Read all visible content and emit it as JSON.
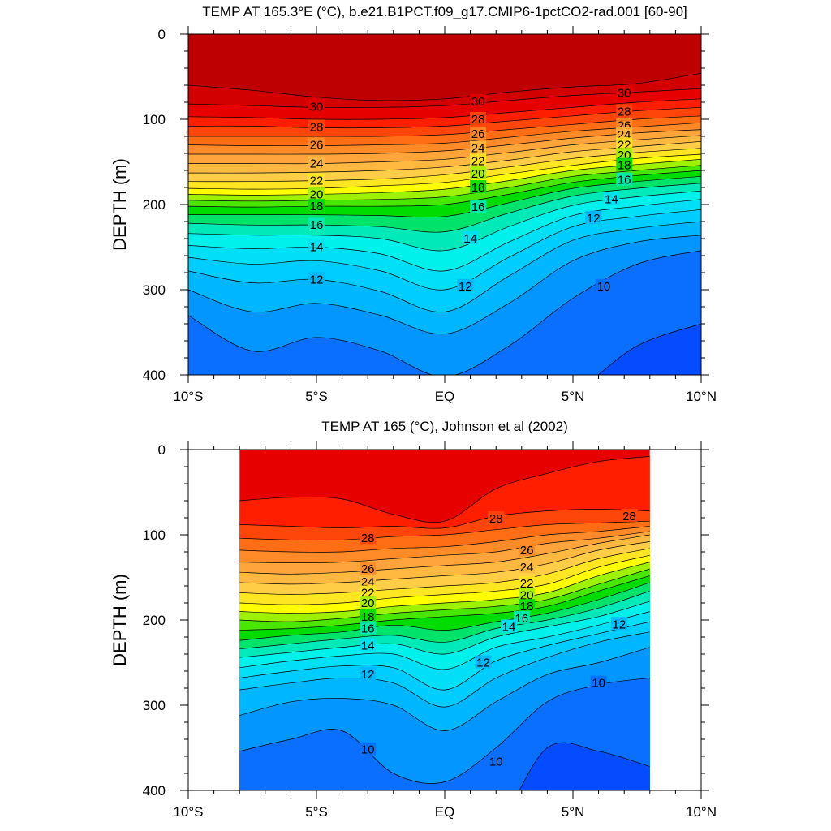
{
  "chart_data": [
    {
      "type": "contour",
      "title": "TEMP AT 165.3°E (°C), b.e21.B1PCT.f09_g17.CMIP6-1pctCO2-rad.001 [60-90]",
      "ylabel": "DEPTH (m)",
      "xlim": [
        -10,
        10
      ],
      "ylim": [
        0,
        400
      ],
      "y_inverted": true,
      "x_ticks": [
        {
          "value": -10,
          "label": "10°S"
        },
        {
          "value": -5,
          "label": "5°S"
        },
        {
          "value": 0,
          "label": "EQ"
        },
        {
          "value": 5,
          "label": "5°N"
        },
        {
          "value": 10,
          "label": "10°N"
        }
      ],
      "y_ticks": [
        0,
        100,
        200,
        300,
        400
      ],
      "data_x_range": [
        -10,
        10
      ],
      "contour_levels": [
        9,
        10,
        11,
        12,
        13,
        14,
        15,
        16,
        17,
        18,
        19,
        20,
        21,
        22,
        23,
        24,
        25,
        26,
        27,
        28,
        29,
        30,
        31
      ],
      "isotherm_depths_x": [
        -10,
        -7.5,
        -5,
        -2.5,
        0,
        2.5,
        5,
        7.5,
        10
      ],
      "isotherms": [
        {
          "t": 31,
          "depths": [
            60,
            66,
            74,
            78,
            76,
            68,
            62,
            58,
            46
          ]
        },
        {
          "t": 30,
          "depths": [
            82,
            84,
            86,
            86,
            84,
            78,
            72,
            68,
            64
          ]
        },
        {
          "t": 29,
          "depths": [
            97,
            98,
            100,
            100,
            98,
            92,
            86,
            80,
            76
          ]
        },
        {
          "t": 28,
          "depths": [
            108,
            108,
            110,
            110,
            108,
            102,
            96,
            90,
            86
          ]
        },
        {
          "t": 27,
          "depths": [
            120,
            120,
            120,
            120,
            118,
            112,
            106,
            100,
            96
          ]
        },
        {
          "t": 26,
          "depths": [
            130,
            131,
            131,
            130,
            128,
            121,
            114,
            109,
            104
          ]
        },
        {
          "t": 25,
          "depths": [
            141,
            141,
            141,
            140,
            137,
            130,
            122,
            116,
            112
          ]
        },
        {
          "t": 24,
          "depths": [
            152,
            152,
            152,
            150,
            147,
            139,
            130,
            124,
            119
          ]
        },
        {
          "t": 23,
          "depths": [
            163,
            163,
            162,
            160,
            156,
            148,
            138,
            132,
            126
          ]
        },
        {
          "t": 22,
          "depths": [
            173,
            173,
            172,
            170,
            165,
            156,
            146,
            139,
            134
          ]
        },
        {
          "t": 21,
          "depths": [
            181,
            182,
            181,
            178,
            174,
            164,
            154,
            146,
            141
          ]
        },
        {
          "t": 20,
          "depths": [
            188,
            189,
            188,
            186,
            182,
            172,
            160,
            153,
            147
          ]
        },
        {
          "t": 19,
          "depths": [
            195,
            196,
            195,
            194,
            191,
            180,
            167,
            160,
            154
          ]
        },
        {
          "t": 18,
          "depths": [
            202,
            203,
            202,
            202,
            200,
            188,
            174,
            166,
            160
          ]
        },
        {
          "t": 17,
          "depths": [
            212,
            212,
            212,
            213,
            214,
            198,
            181,
            173,
            167
          ]
        },
        {
          "t": 16,
          "depths": [
            222,
            224,
            224,
            226,
            232,
            210,
            190,
            181,
            175
          ]
        },
        {
          "t": 15,
          "depths": [
            234,
            236,
            236,
            240,
            254,
            226,
            201,
            191,
            184
          ]
        },
        {
          "t": 14,
          "depths": [
            248,
            252,
            250,
            258,
            278,
            244,
            213,
            202,
            194
          ]
        },
        {
          "t": 13,
          "depths": [
            262,
            270,
            266,
            278,
            300,
            262,
            226,
            214,
            206
          ]
        },
        {
          "t": 12,
          "depths": [
            278,
            292,
            288,
            302,
            326,
            284,
            242,
            228,
            220
          ]
        },
        {
          "t": 11,
          "depths": [
            300,
            326,
            316,
            330,
            352,
            316,
            266,
            244,
            236
          ]
        },
        {
          "t": 10,
          "depths": [
            330,
            372,
            356,
            372,
            402,
            366,
            310,
            270,
            254
          ]
        },
        {
          "t": 9,
          "depths": [
            420,
            440,
            440,
            440,
            440,
            440,
            420,
            366,
            340
          ]
        }
      ],
      "contour_labels": [
        {
          "x": -5,
          "y": 85,
          "text": "30"
        },
        {
          "x": -5,
          "y": 109,
          "text": "28"
        },
        {
          "x": -5,
          "y": 130,
          "text": "26"
        },
        {
          "x": -5,
          "y": 152,
          "text": "24"
        },
        {
          "x": -5,
          "y": 172,
          "text": "22"
        },
        {
          "x": -5,
          "y": 188,
          "text": "20"
        },
        {
          "x": -5,
          "y": 202,
          "text": "18"
        },
        {
          "x": -5,
          "y": 224,
          "text": "16"
        },
        {
          "x": -5,
          "y": 250,
          "text": "14"
        },
        {
          "x": -5,
          "y": 288,
          "text": "12"
        },
        {
          "x": 1.3,
          "y": 79,
          "text": "30"
        },
        {
          "x": 1.3,
          "y": 100,
          "text": "28"
        },
        {
          "x": 1.3,
          "y": 117,
          "text": "26"
        },
        {
          "x": 1.3,
          "y": 134,
          "text": "24"
        },
        {
          "x": 1.3,
          "y": 149,
          "text": "22"
        },
        {
          "x": 1.3,
          "y": 164,
          "text": "20"
        },
        {
          "x": 1.3,
          "y": 180,
          "text": "18"
        },
        {
          "x": 1.3,
          "y": 203,
          "text": "16"
        },
        {
          "x": 1.0,
          "y": 240,
          "text": "14"
        },
        {
          "x": 0.8,
          "y": 296,
          "text": "12"
        },
        {
          "x": 7.0,
          "y": 69,
          "text": "30"
        },
        {
          "x": 7.0,
          "y": 91,
          "text": "28"
        },
        {
          "x": 7.0,
          "y": 107,
          "text": "26"
        },
        {
          "x": 7.0,
          "y": 118,
          "text": "24"
        },
        {
          "x": 7.0,
          "y": 130,
          "text": "22"
        },
        {
          "x": 7.0,
          "y": 142,
          "text": "20"
        },
        {
          "x": 7.0,
          "y": 154,
          "text": "18"
        },
        {
          "x": 7.0,
          "y": 171,
          "text": "16"
        },
        {
          "x": 6.5,
          "y": 194,
          "text": "14"
        },
        {
          "x": 5.8,
          "y": 216,
          "text": "12"
        },
        {
          "x": 6.2,
          "y": 296,
          "text": "10"
        }
      ]
    },
    {
      "type": "contour",
      "title": "TEMP AT 165 (°C), Johnson et al (2002)",
      "ylabel": "DEPTH (m)",
      "xlim": [
        -10,
        10
      ],
      "ylim": [
        0,
        400
      ],
      "y_inverted": true,
      "x_ticks": [
        {
          "value": -10,
          "label": "10°S"
        },
        {
          "value": -5,
          "label": "5°S"
        },
        {
          "value": 0,
          "label": "EQ"
        },
        {
          "value": 5,
          "label": "5°N"
        },
        {
          "value": 10,
          "label": "10°N"
        }
      ],
      "y_ticks": [
        0,
        100,
        200,
        300,
        400
      ],
      "data_x_range": [
        -8,
        8
      ],
      "contour_levels": [
        9,
        10,
        11,
        12,
        13,
        14,
        15,
        16,
        17,
        18,
        19,
        20,
        21,
        22,
        23,
        24,
        25,
        26,
        27,
        28,
        29
      ],
      "isotherm_depths_x": [
        -8,
        -6,
        -4,
        -2,
        0,
        2,
        4,
        6,
        8
      ],
      "isotherms": [
        {
          "t": 29,
          "depths": [
            60,
            56,
            58,
            76,
            84,
            46,
            28,
            14,
            8
          ]
        },
        {
          "t": 28,
          "depths": [
            88,
            90,
            92,
            90,
            92,
            78,
            72,
            70,
            72
          ]
        },
        {
          "t": 27,
          "depths": [
            104,
            106,
            106,
            102,
            100,
            94,
            88,
            86,
            84
          ]
        },
        {
          "t": 26,
          "depths": [
            118,
            120,
            120,
            116,
            114,
            108,
            100,
            96,
            90
          ]
        },
        {
          "t": 25,
          "depths": [
            132,
            133,
            132,
            128,
            124,
            120,
            110,
            104,
            96
          ]
        },
        {
          "t": 24,
          "depths": [
            144,
            146,
            144,
            140,
            136,
            132,
            122,
            110,
            100
          ]
        },
        {
          "t": 23,
          "depths": [
            156,
            158,
            156,
            152,
            148,
            144,
            134,
            118,
            108
          ]
        },
        {
          "t": 22,
          "depths": [
            168,
            170,
            168,
            164,
            160,
            156,
            146,
            128,
            116
          ]
        },
        {
          "t": 21,
          "depths": [
            180,
            182,
            180,
            174,
            170,
            166,
            158,
            138,
            124
          ]
        },
        {
          "t": 20,
          "depths": [
            190,
            192,
            190,
            184,
            180,
            176,
            168,
            148,
            132
          ]
        },
        {
          "t": 19,
          "depths": [
            200,
            202,
            198,
            192,
            188,
            184,
            176,
            158,
            140
          ]
        },
        {
          "t": 18,
          "depths": [
            212,
            210,
            206,
            200,
            196,
            192,
            184,
            166,
            148
          ]
        },
        {
          "t": 17,
          "depths": [
            224,
            218,
            214,
            206,
            212,
            202,
            192,
            176,
            156
          ]
        },
        {
          "t": 16,
          "depths": [
            234,
            228,
            222,
            218,
            226,
            210,
            200,
            186,
            166
          ]
        },
        {
          "t": 15,
          "depths": [
            244,
            238,
            232,
            228,
            240,
            220,
            208,
            196,
            178
          ]
        },
        {
          "t": 14,
          "depths": [
            256,
            248,
            242,
            240,
            258,
            232,
            220,
            206,
            190
          ]
        },
        {
          "t": 13,
          "depths": [
            268,
            260,
            254,
            256,
            282,
            248,
            230,
            216,
            202
          ]
        },
        {
          "t": 12,
          "depths": [
            282,
            274,
            268,
            274,
            302,
            268,
            244,
            226,
            214
          ]
        },
        {
          "t": 11,
          "depths": [
            312,
            296,
            292,
            300,
            330,
            296,
            264,
            250,
            232
          ]
        },
        {
          "t": 10,
          "depths": [
            354,
            340,
            330,
            380,
            390,
            350,
            296,
            276,
            268
          ]
        },
        {
          "t": 9,
          "depths": [
            440,
            440,
            440,
            440,
            440,
            440,
            350,
            354,
            372
          ]
        }
      ],
      "contour_labels": [
        {
          "x": -3,
          "y": 104,
          "text": "28"
        },
        {
          "x": -3,
          "y": 140,
          "text": "26"
        },
        {
          "x": -3,
          "y": 155,
          "text": "24"
        },
        {
          "x": -3,
          "y": 168,
          "text": "22"
        },
        {
          "x": -3,
          "y": 180,
          "text": "20"
        },
        {
          "x": -3,
          "y": 196,
          "text": "18"
        },
        {
          "x": -3,
          "y": 210,
          "text": "16"
        },
        {
          "x": -3,
          "y": 230,
          "text": "14"
        },
        {
          "x": -3,
          "y": 264,
          "text": "12"
        },
        {
          "x": -3,
          "y": 352,
          "text": "10"
        },
        {
          "x": 2,
          "y": 81,
          "text": "28"
        },
        {
          "x": 3.2,
          "y": 118,
          "text": "26"
        },
        {
          "x": 3.2,
          "y": 138,
          "text": "24"
        },
        {
          "x": 3.2,
          "y": 157,
          "text": "22"
        },
        {
          "x": 3.2,
          "y": 171,
          "text": "20"
        },
        {
          "x": 3.2,
          "y": 184,
          "text": "18"
        },
        {
          "x": 3,
          "y": 198,
          "text": "16"
        },
        {
          "x": 2.5,
          "y": 208,
          "text": "14"
        },
        {
          "x": 1.5,
          "y": 250,
          "text": "12"
        },
        {
          "x": 2,
          "y": 366,
          "text": "10"
        },
        {
          "x": 7.2,
          "y": 78,
          "text": "28"
        },
        {
          "x": 6.8,
          "y": 205,
          "text": "12"
        },
        {
          "x": 6,
          "y": 274,
          "text": "10"
        }
      ]
    }
  ]
}
